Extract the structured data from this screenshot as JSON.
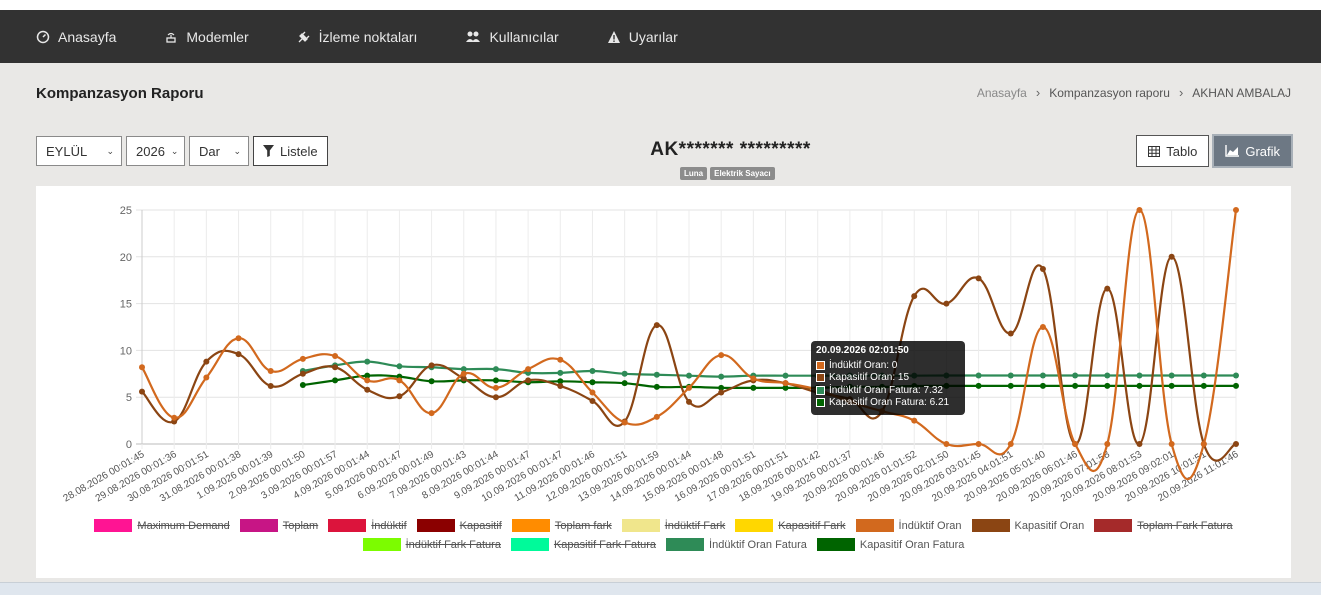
{
  "nav": {
    "items": [
      {
        "label": "Anasayfa",
        "icon": "dashboard-icon"
      },
      {
        "label": "Modemler",
        "icon": "router-icon"
      },
      {
        "label": "İzleme noktaları",
        "icon": "plug-icon"
      },
      {
        "label": "Kullanıcılar",
        "icon": "users-icon"
      },
      {
        "label": "Uyarılar",
        "icon": "warning-icon"
      }
    ]
  },
  "page": {
    "title": "Kompanzasyon Raporu"
  },
  "breadcrumb": {
    "home": "Anasayfa",
    "section": "Kompanzasyon raporu",
    "current": "AKHAN AMBALAJ"
  },
  "filters": {
    "month": "EYLÜL",
    "year": "2026",
    "type": "Dar",
    "list_label": "Listele"
  },
  "device": {
    "title": "AK******* *********",
    "badges": [
      "Luna",
      "Elektrik Sayacı"
    ]
  },
  "view": {
    "table_label": "Tablo",
    "chart_label": "Grafik"
  },
  "tooltip": {
    "title": "20.09.2026 02:01:50",
    "rows": [
      {
        "text": "İndüktif Oran: 0",
        "color": "#d2691e"
      },
      {
        "text": "Kapasitif Oran: 15",
        "color": "#8b4513"
      },
      {
        "text": "İndüktif Oran Fatura: 7.32",
        "color": "#2e8b57"
      },
      {
        "text": "Kapasitif Oran Fatura: 6.21",
        "color": "#006400"
      }
    ]
  },
  "legend": {
    "row1": [
      {
        "label": "Maximum Demand",
        "color": "#ff1493",
        "hidden": true
      },
      {
        "label": "Toplam",
        "color": "#c71585",
        "hidden": true
      },
      {
        "label": "İndüktif",
        "color": "#dc143c",
        "hidden": true
      },
      {
        "label": "Kapasitif",
        "color": "#8b0000",
        "hidden": true
      },
      {
        "label": "Toplam fark",
        "color": "#ff8c00",
        "hidden": true
      },
      {
        "label": "İndüktif Fark",
        "color": "#f0e68c",
        "hidden": true
      },
      {
        "label": "Kapasitif Fark",
        "color": "#ffd700",
        "hidden": true
      },
      {
        "label": "İndüktif Oran",
        "color": "#d2691e",
        "hidden": false
      },
      {
        "label": "Kapasitif Oran",
        "color": "#8b4513",
        "hidden": false
      },
      {
        "label": "Toplam Fark Fatura",
        "color": "#a52a2a",
        "hidden": true
      }
    ],
    "row2": [
      {
        "label": "İndüktif Fark Fatura",
        "color": "#7cfc00",
        "hidden": true
      },
      {
        "label": "Kapasitif Fark Fatura",
        "color": "#00fa9a",
        "hidden": true
      },
      {
        "label": "İndüktif Oran Fatura",
        "color": "#2e8b57",
        "hidden": false
      },
      {
        "label": "Kapasitif Oran Fatura",
        "color": "#006400",
        "hidden": false
      }
    ]
  },
  "chart_data": {
    "type": "line",
    "ylim": [
      0,
      25
    ],
    "yticks": [
      0,
      5,
      10,
      15,
      20,
      25
    ],
    "grid": true,
    "legend_position": "bottom",
    "categories": [
      "28.08.2026 00:01:45",
      "29.08.2026 00:01:36",
      "30.08.2026 00:01:51",
      "31.08.2026 00:01:38",
      "1.09.2026 00:01:39",
      "2.09.2026 00:01:50",
      "3.09.2026 00:01:57",
      "4.09.2026 00:01:44",
      "5.09.2026 00:01:47",
      "6.09.2026 00:01:49",
      "7.09.2026 00:01:43",
      "8.09.2026 00:01:44",
      "9.09.2026 00:01:47",
      "10.09.2026 00:01:47",
      "11.09.2026 00:01:46",
      "12.09.2026 00:01:51",
      "13.09.2026 00:01:59",
      "14.09.2026 00:01:44",
      "15.09.2026 00:01:48",
      "16.09.2026 00:01:51",
      "17.09.2026 00:01:51",
      "18.09.2026 00:01:42",
      "19.09.2026 00:01:37",
      "20.09.2026 00:01:46",
      "20.09.2026 01:01:52",
      "20.09.2026 02:01:50",
      "20.09.2026 03:01:45",
      "20.09.2026 04:01:51",
      "20.09.2026 05:01:40",
      "20.09.2026 06:01:46",
      "20.09.2026 07:01:58",
      "20.09.2026 08:01:53",
      "20.09.2026 09:02:01",
      "20.09.2026 10:01:51",
      "20.09.2026 11:01:46"
    ],
    "series": [
      {
        "name": "İndüktif Oran",
        "color": "#d2691e",
        "values": [
          8.2,
          2.8,
          7.1,
          11.3,
          7.8,
          9.1,
          9.4,
          6.8,
          6.8,
          3.3,
          7.5,
          6.0,
          8.0,
          9.0,
          5.5,
          2.3,
          2.9,
          6.0,
          9.5,
          7.0,
          6.5,
          5.8,
          4.5,
          3.5,
          2.5,
          0,
          0,
          0,
          12.5,
          0,
          0,
          25,
          0,
          0,
          25
        ]
      },
      {
        "name": "Kapasitif Oran",
        "color": "#8b4513",
        "values": [
          5.6,
          2.4,
          8.8,
          9.6,
          6.2,
          7.5,
          8.2,
          5.8,
          5.1,
          8.4,
          7.0,
          5.0,
          6.8,
          6.2,
          4.6,
          2.4,
          12.7,
          4.5,
          5.5,
          6.8,
          6.5,
          5.5,
          4.8,
          3.5,
          15.8,
          15.0,
          17.7,
          11.8,
          18.7,
          0,
          16.6,
          0,
          20.0,
          0,
          0
        ]
      },
      {
        "name": "İndüktif Oran Fatura",
        "color": "#2e8b57",
        "values": [
          null,
          null,
          null,
          null,
          null,
          7.8,
          8.4,
          8.8,
          8.3,
          8.2,
          8.0,
          8.0,
          7.6,
          7.6,
          7.8,
          7.5,
          7.4,
          7.3,
          7.2,
          7.3,
          7.3,
          7.3,
          7.3,
          7.3,
          7.3,
          7.32,
          7.32,
          7.32,
          7.32,
          7.32,
          7.32,
          7.32,
          7.32,
          7.32,
          7.32
        ]
      },
      {
        "name": "Kapasitif Oran Fatura",
        "color": "#006400",
        "values": [
          null,
          null,
          null,
          null,
          null,
          6.3,
          6.8,
          7.3,
          7.2,
          6.7,
          6.8,
          6.8,
          6.6,
          6.7,
          6.6,
          6.5,
          6.1,
          6.1,
          6.0,
          6.0,
          6.0,
          6.0,
          6.1,
          6.1,
          6.2,
          6.21,
          6.21,
          6.21,
          6.21,
          6.21,
          6.21,
          6.21,
          6.21,
          6.21,
          6.21
        ]
      }
    ]
  }
}
